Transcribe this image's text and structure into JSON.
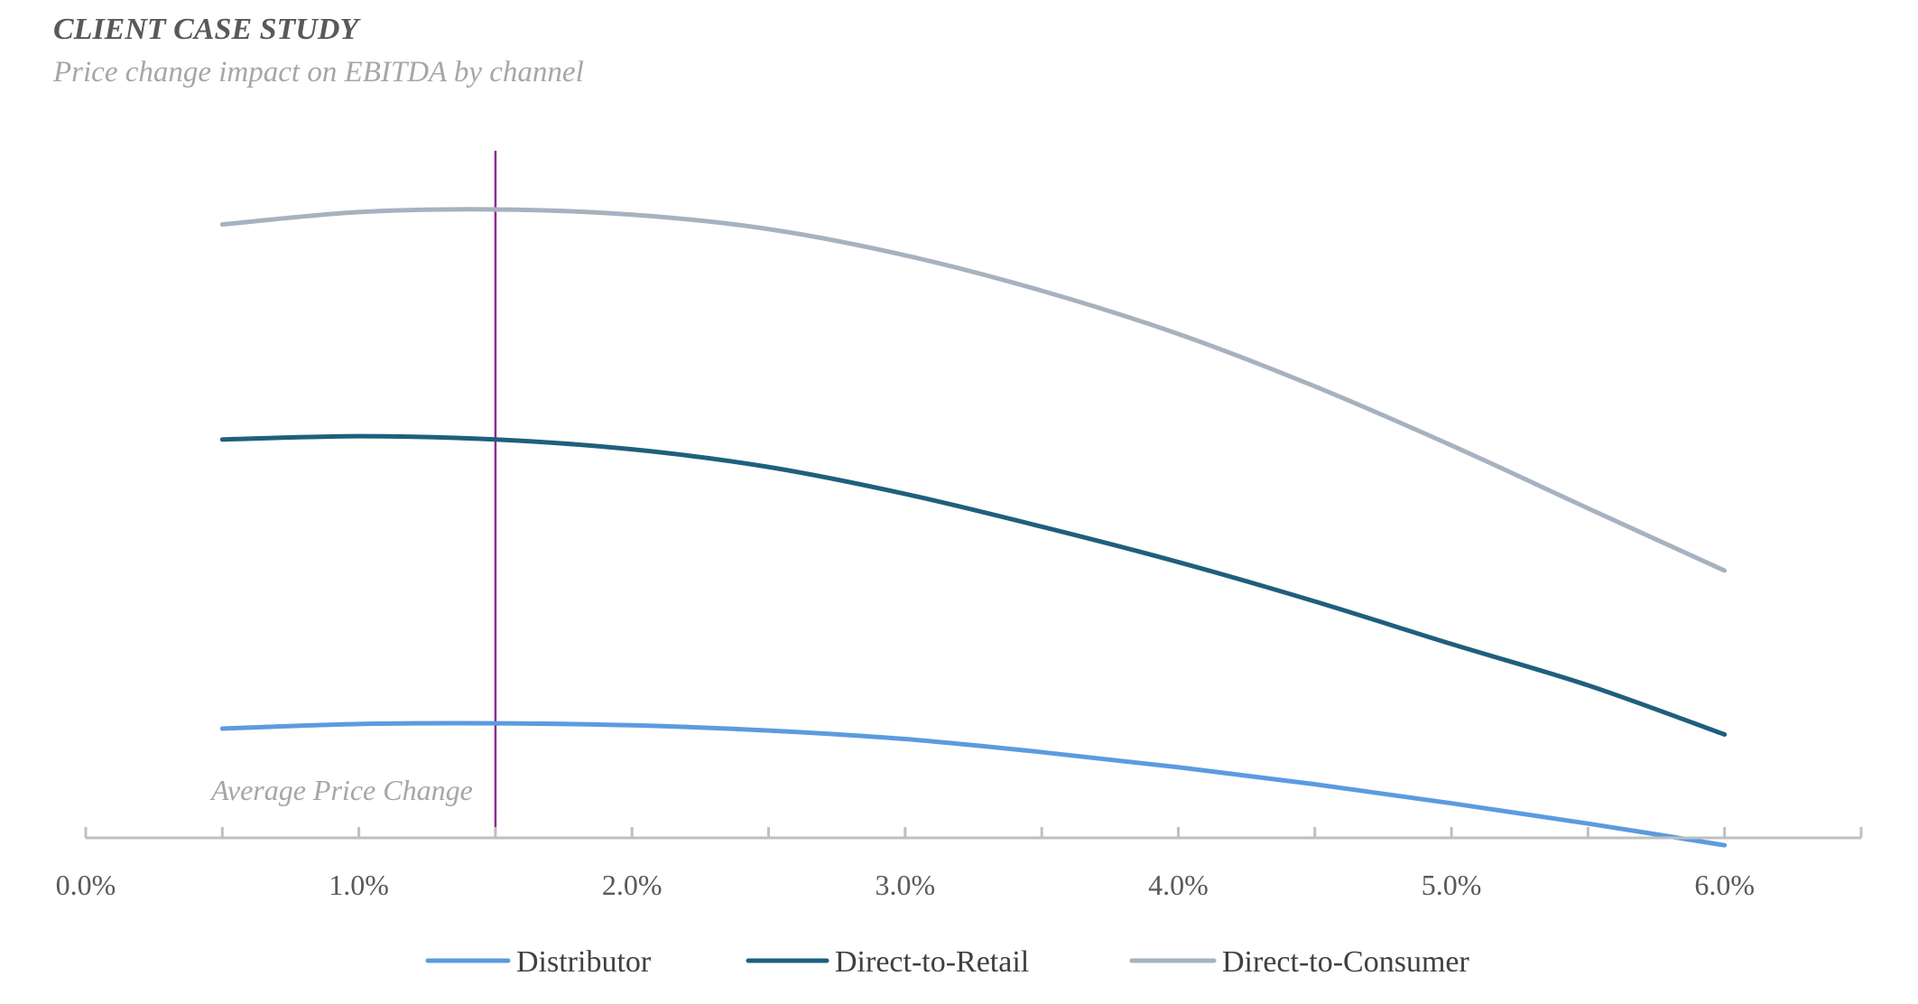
{
  "header": {
    "title": "CLIENT CASE STUDY",
    "subtitle": "Price change impact on EBITDA by channel"
  },
  "chart_data": {
    "type": "line",
    "title": "CLIENT CASE STUDY",
    "subtitle": "Price change impact on EBITDA by channel",
    "xlabel": "",
    "ylabel": "",
    "xlim": [
      0.0,
      6.5
    ],
    "ylim": [
      0,
      100
    ],
    "y_axis_visible": false,
    "grid": false,
    "x_ticks": [
      0.0,
      1.0,
      2.0,
      3.0,
      4.0,
      5.0,
      6.0
    ],
    "x_tick_labels": [
      "0.0%",
      "1.0%",
      "2.0%",
      "3.0%",
      "4.0%",
      "5.0%",
      "6.0%"
    ],
    "x_minor_ticks": [
      0.5,
      1.5,
      2.5,
      3.5,
      4.5,
      5.5,
      6.5
    ],
    "x": [
      0.5,
      1.0,
      1.5,
      2.0,
      2.5,
      3.0,
      3.5,
      4.0,
      4.5,
      5.0,
      5.5,
      6.0
    ],
    "series": [
      {
        "name": "Distributor",
        "color": "#5B9BE0",
        "values": [
          16.4,
          17.1,
          17.2,
          16.9,
          16.1,
          14.8,
          12.8,
          10.5,
          7.9,
          5.0,
          1.9,
          -1.4
        ]
      },
      {
        "name": "Direct-to-Retail",
        "color": "#1F5F7D",
        "values": [
          60.5,
          61.0,
          60.5,
          59.0,
          56.3,
          52.2,
          47.2,
          41.8,
          35.8,
          29.3,
          23.0,
          15.5
        ]
      },
      {
        "name": "Direct-to-Consumer",
        "color": "#A6B2C0",
        "values": [
          93.3,
          95.2,
          95.6,
          94.8,
          92.6,
          88.6,
          83.2,
          76.6,
          68.6,
          59.6,
          50.0,
          40.5
        ]
      }
    ],
    "annotations": [
      {
        "type": "vertical-line",
        "x": 1.5,
        "label": "Average Price Change",
        "color": "#8E2A8E"
      }
    ],
    "legend_position": "bottom"
  }
}
